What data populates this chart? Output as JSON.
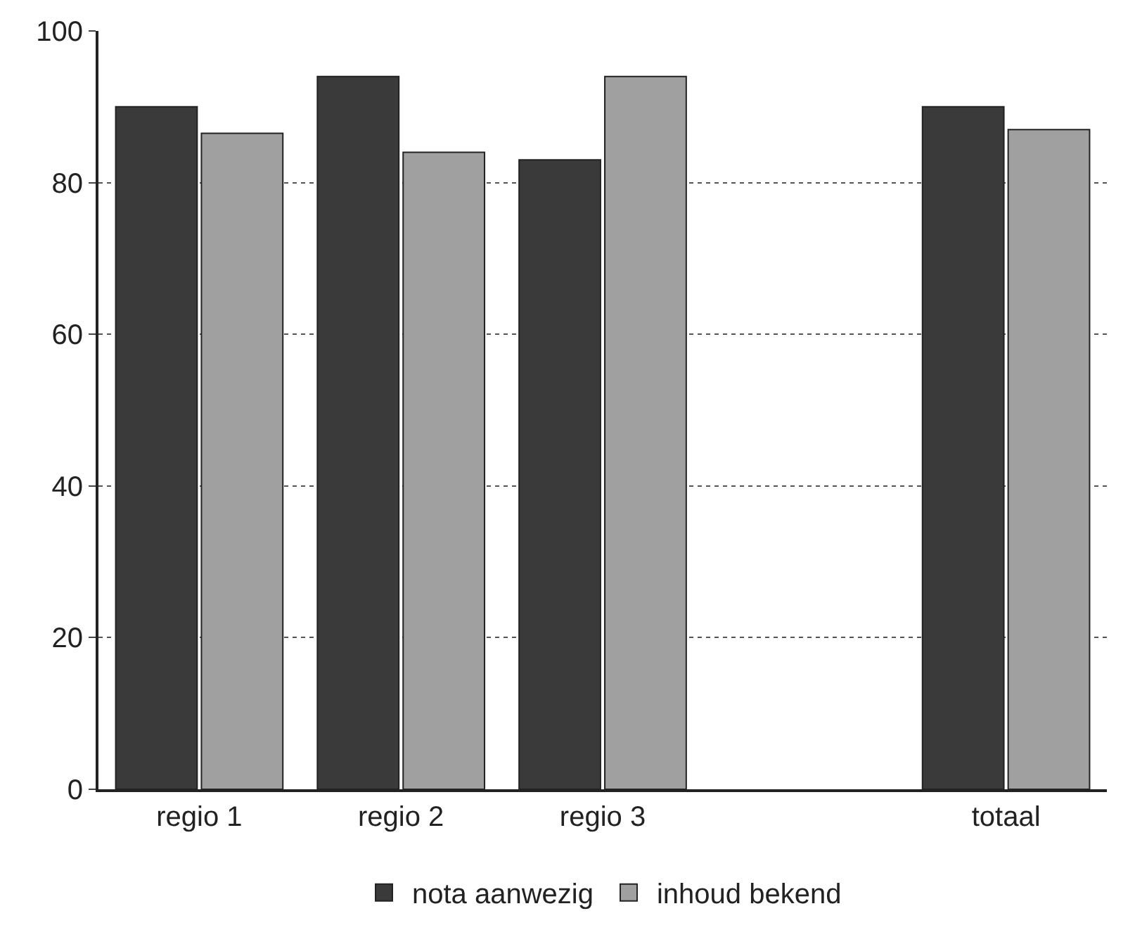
{
  "chart_data": {
    "type": "bar",
    "categories": [
      "regio 1",
      "regio 2",
      "regio 3",
      null,
      "totaal"
    ],
    "series": [
      {
        "name": "nota aanwezig",
        "color": "#3a3a3a",
        "values": [
          90,
          94,
          83,
          null,
          90
        ]
      },
      {
        "name": "inhoud bekend",
        "color": "#a0a0a0",
        "values": [
          86.5,
          84,
          94,
          null,
          87
        ]
      }
    ],
    "ylim": [
      0,
      100
    ],
    "yticks": [
      0,
      20,
      40,
      60,
      80,
      100
    ],
    "grid": "y",
    "legend": "bottom"
  }
}
